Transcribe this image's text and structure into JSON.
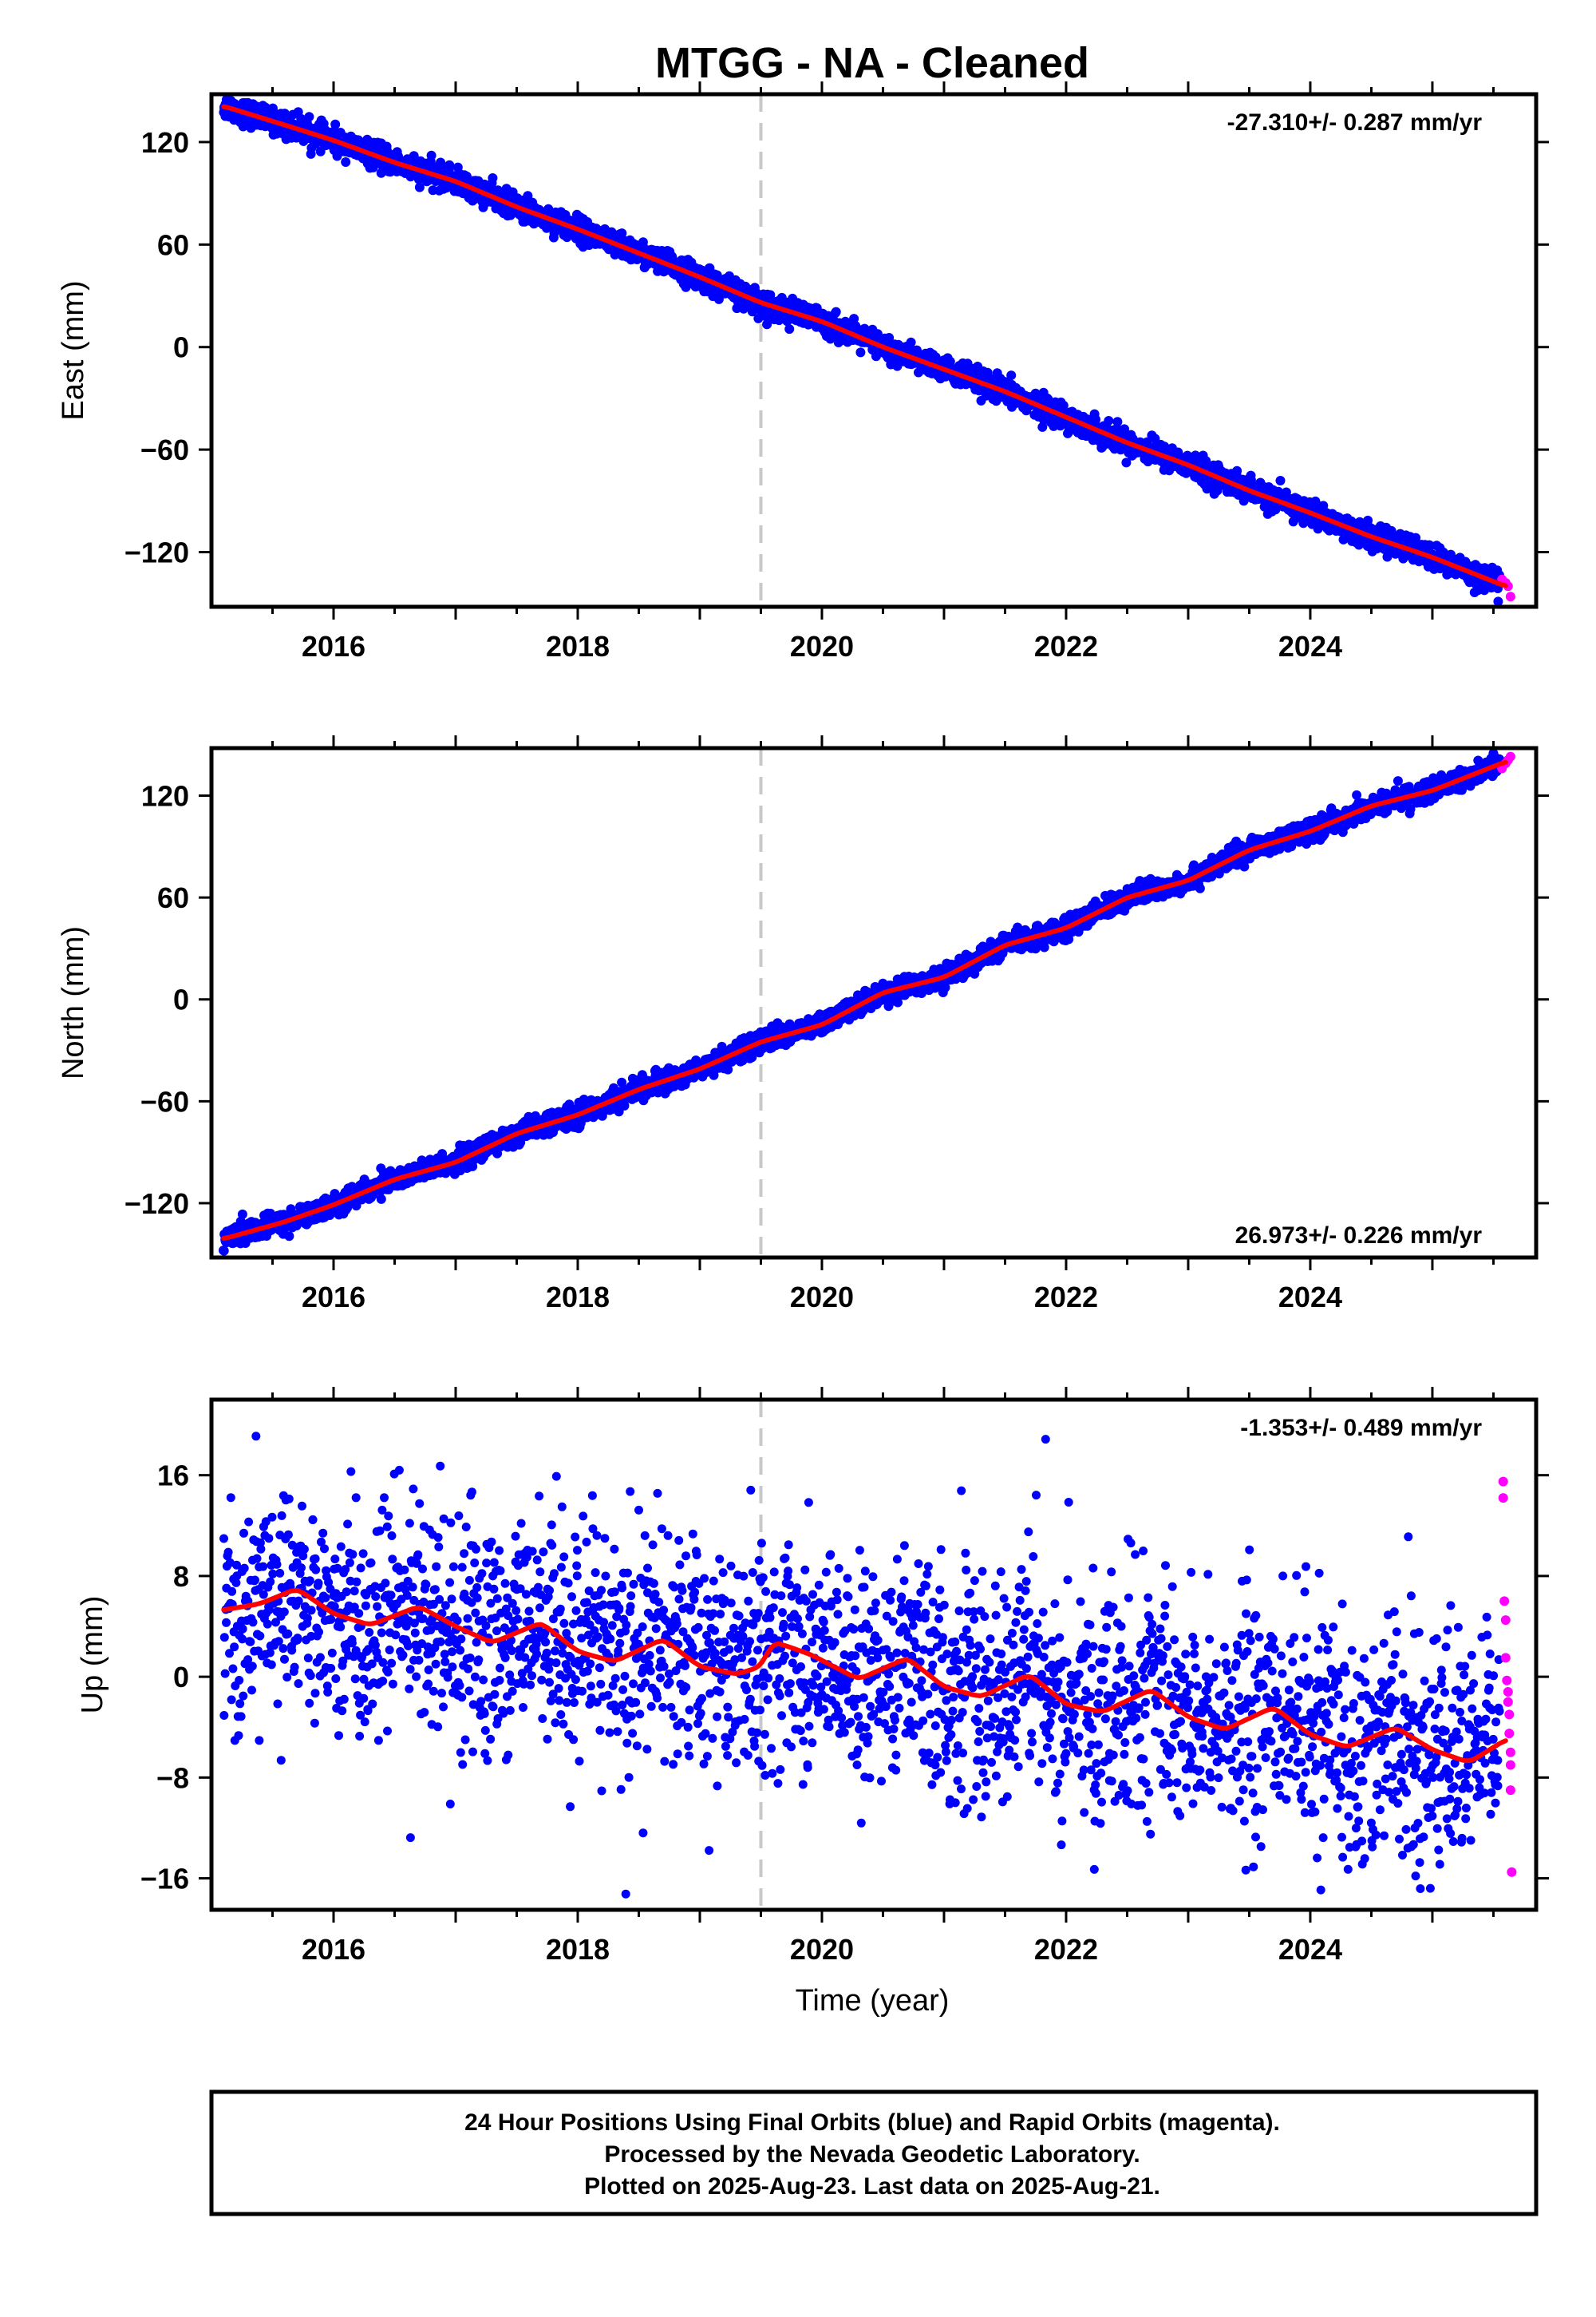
{
  "chart_data": [
    {
      "type": "scatter",
      "title": "MTGG  - NA - Cleaned",
      "ylabel": "East (mm)",
      "xlabel": "",
      "xlim": [
        2015.0,
        2025.85
      ],
      "ylim": [
        -152,
        148
      ],
      "yticks": [
        -120,
        -60,
        0,
        60,
        120
      ],
      "xticks": [
        2016,
        2018,
        2020,
        2022,
        2024
      ],
      "rate_text": "-27.310+/- 0.287 mm/yr",
      "rate_position": "top-right",
      "grid": false,
      "reference_line_x": 2019.5,
      "final_orbits": {
        "x_start": 2015.1,
        "x_end": 2025.55,
        "y_start": 142,
        "y_end": -136,
        "scatter_mm": 3.5
      },
      "rapid_orbits": {
        "x": [
          2025.57,
          2025.6,
          2025.62,
          2025.64
        ],
        "y": [
          -136,
          -138,
          -140,
          -146
        ]
      },
      "fit_line": {
        "x": [
          2015.1,
          2015.6,
          2016.0,
          2016.5,
          2017.0,
          2017.5,
          2018.0,
          2018.5,
          2019.0,
          2019.5,
          2020.0,
          2020.5,
          2021.0,
          2021.5,
          2022.0,
          2022.5,
          2023.0,
          2023.5,
          2024.0,
          2024.5,
          2025.0,
          2025.6
        ],
        "y": [
          141,
          130,
          121,
          108,
          97,
          82,
          69,
          55,
          41,
          26,
          15,
          0,
          -13,
          -26,
          -41,
          -56,
          -69,
          -84,
          -97,
          -111,
          -123,
          -140
        ]
      }
    },
    {
      "type": "scatter",
      "ylabel": "North (mm)",
      "xlabel": "",
      "xlim": [
        2015.0,
        2025.85
      ],
      "ylim": [
        -152,
        148
      ],
      "yticks": [
        -120,
        -60,
        0,
        60,
        120
      ],
      "xticks": [
        2016,
        2018,
        2020,
        2022,
        2024
      ],
      "rate_text": "26.973+/- 0.226 mm/yr",
      "rate_position": "bottom-right",
      "grid": false,
      "reference_line_x": 2019.5,
      "final_orbits": {
        "x_start": 2015.1,
        "x_end": 2025.55,
        "y_start": -142,
        "y_end": 136,
        "scatter_mm": 3
      },
      "rapid_orbits": {
        "x": [
          2025.57,
          2025.6,
          2025.62,
          2025.64
        ],
        "y": [
          136,
          139,
          141,
          143
        ]
      },
      "fit_line": {
        "x": [
          2015.1,
          2015.6,
          2016.0,
          2016.5,
          2017.0,
          2017.5,
          2018.0,
          2018.5,
          2019.0,
          2019.5,
          2020.0,
          2020.5,
          2021.0,
          2021.5,
          2022.0,
          2022.5,
          2023.0,
          2023.5,
          2024.0,
          2024.5,
          2025.0,
          2025.6
        ],
        "y": [
          -141,
          -131,
          -121,
          -106,
          -96,
          -79,
          -68,
          -53,
          -41,
          -25,
          -15,
          4,
          13,
          32,
          42,
          60,
          70,
          88,
          99,
          114,
          123,
          140
        ]
      }
    },
    {
      "type": "scatter",
      "ylabel": "Up (mm)",
      "xlabel": "Time (year)",
      "xlim": [
        2015.0,
        2025.85
      ],
      "ylim": [
        -18.5,
        22
      ],
      "yticks": [
        -16,
        -8,
        0,
        8,
        16
      ],
      "xticks": [
        2016,
        2018,
        2020,
        2022,
        2024
      ],
      "rate_text": "-1.353+/- 0.489 mm/yr",
      "rate_position": "top-right",
      "grid": false,
      "reference_line_x": 2019.5,
      "final_orbits": {
        "x_start": 2015.1,
        "x_end": 2025.55,
        "y_start": 5.5,
        "y_end": -6.5,
        "scatter_mm": 4.5,
        "seasonal_amplitude_mm": 1.4
      },
      "rapid_orbits": {
        "x": [
          2025.58,
          2025.58,
          2025.59,
          2025.6,
          2025.6,
          2025.61,
          2025.62,
          2025.62,
          2025.63,
          2025.63,
          2025.64,
          2025.64,
          2025.64,
          2025.65
        ],
        "y": [
          15.5,
          14.2,
          6,
          4.5,
          1.5,
          -0.3,
          -1.2,
          -2,
          -3,
          -4.5,
          -6,
          -7,
          -9,
          -15.5
        ]
      },
      "fit_line": {
        "x": [
          2015.1,
          2015.4,
          2015.7,
          2016.0,
          2016.3,
          2016.7,
          2017.0,
          2017.3,
          2017.7,
          2018.0,
          2018.3,
          2018.7,
          2019.0,
          2019.3,
          2019.5,
          2019.6,
          2019.9,
          2020.3,
          2020.7,
          2021.0,
          2021.3,
          2021.7,
          2022.0,
          2022.3,
          2022.7,
          2023.0,
          2023.3,
          2023.7,
          2024.0,
          2024.3,
          2024.7,
          2025.0,
          2025.3,
          2025.6
        ],
        "y": [
          5.3,
          5.8,
          7.0,
          5.0,
          4.1,
          5.6,
          4.0,
          2.7,
          4.3,
          2.0,
          1.2,
          3.0,
          0.8,
          0.2,
          0.8,
          2.8,
          1.8,
          -0.2,
          1.5,
          -0.8,
          -1.6,
          0.2,
          -2.2,
          -2.8,
          -1.0,
          -3.2,
          -4.2,
          -2.4,
          -4.6,
          -5.6,
          -4.0,
          -5.8,
          -6.8,
          -5.0
        ]
      }
    }
  ],
  "footer": {
    "line1": "24 Hour Positions Using Final Orbits (blue) and Rapid Orbits (magenta).",
    "line2": "Processed by the Nevada Geodetic Laboratory.",
    "line3": "Plotted on 2025-Aug-23. Last data on 2025-Aug-21."
  },
  "colors": {
    "final_orbits": "#0000ff",
    "rapid_orbits": "#ff00ff",
    "fit_line": "#ff0000",
    "reference_line": "#c8c8c8",
    "frame": "#000000"
  }
}
